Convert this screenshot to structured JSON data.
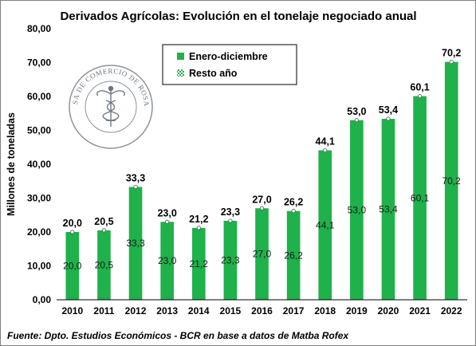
{
  "chart_data": {
    "type": "bar",
    "title": "Derivados Agrícolas: Evolución en el tonelaje negociado anual",
    "ylabel": "Millones de toneladas",
    "xlabel": "",
    "ylim": [
      0,
      80
    ],
    "yticks": [
      "0,00",
      "10,00",
      "20,00",
      "30,00",
      "40,00",
      "50,00",
      "60,00",
      "70,00",
      "80,00"
    ],
    "grid": false,
    "legend_position": "top-center",
    "categories": [
      "2010",
      "2011",
      "2012",
      "2013",
      "2014",
      "2015",
      "2016",
      "2017",
      "2018",
      "2019",
      "2020",
      "2021",
      "2022"
    ],
    "series": [
      {
        "name": "Enero-diciembre",
        "color": "#1fb14a",
        "values": [
          20.0,
          20.5,
          33.3,
          23.0,
          21.2,
          23.3,
          27.0,
          26.2,
          44.1,
          53.0,
          53.4,
          60.1,
          70.2
        ],
        "labels": [
          "20,0",
          "20,5",
          "33,3",
          "23,0",
          "21,2",
          "23,3",
          "27,0",
          "26,2",
          "44,1",
          "53,0",
          "53,4",
          "60,1",
          "70,2"
        ]
      },
      {
        "name": "Resto año",
        "color": "#1fb14a",
        "pattern": "checkered",
        "values": [
          20.0,
          20.5,
          33.3,
          23.0,
          21.2,
          23.3,
          27.0,
          26.2,
          44.1,
          53.0,
          53.4,
          60.1,
          70.2
        ],
        "labels": [
          "20,0",
          "20,5",
          "33,3",
          "23,0",
          "21,2",
          "23,3",
          "27,0",
          "26,2",
          "44,1",
          "53,0",
          "53,4",
          "60,1",
          "70,2"
        ]
      }
    ],
    "source": "Fuente: Dpto. Estudios Económicos - BCR en base a datos de Matba Rofex"
  },
  "logo": {
    "text": "BOLSA DE COMERCIO DE ROSARIO",
    "icon": "caduceus-icon"
  }
}
